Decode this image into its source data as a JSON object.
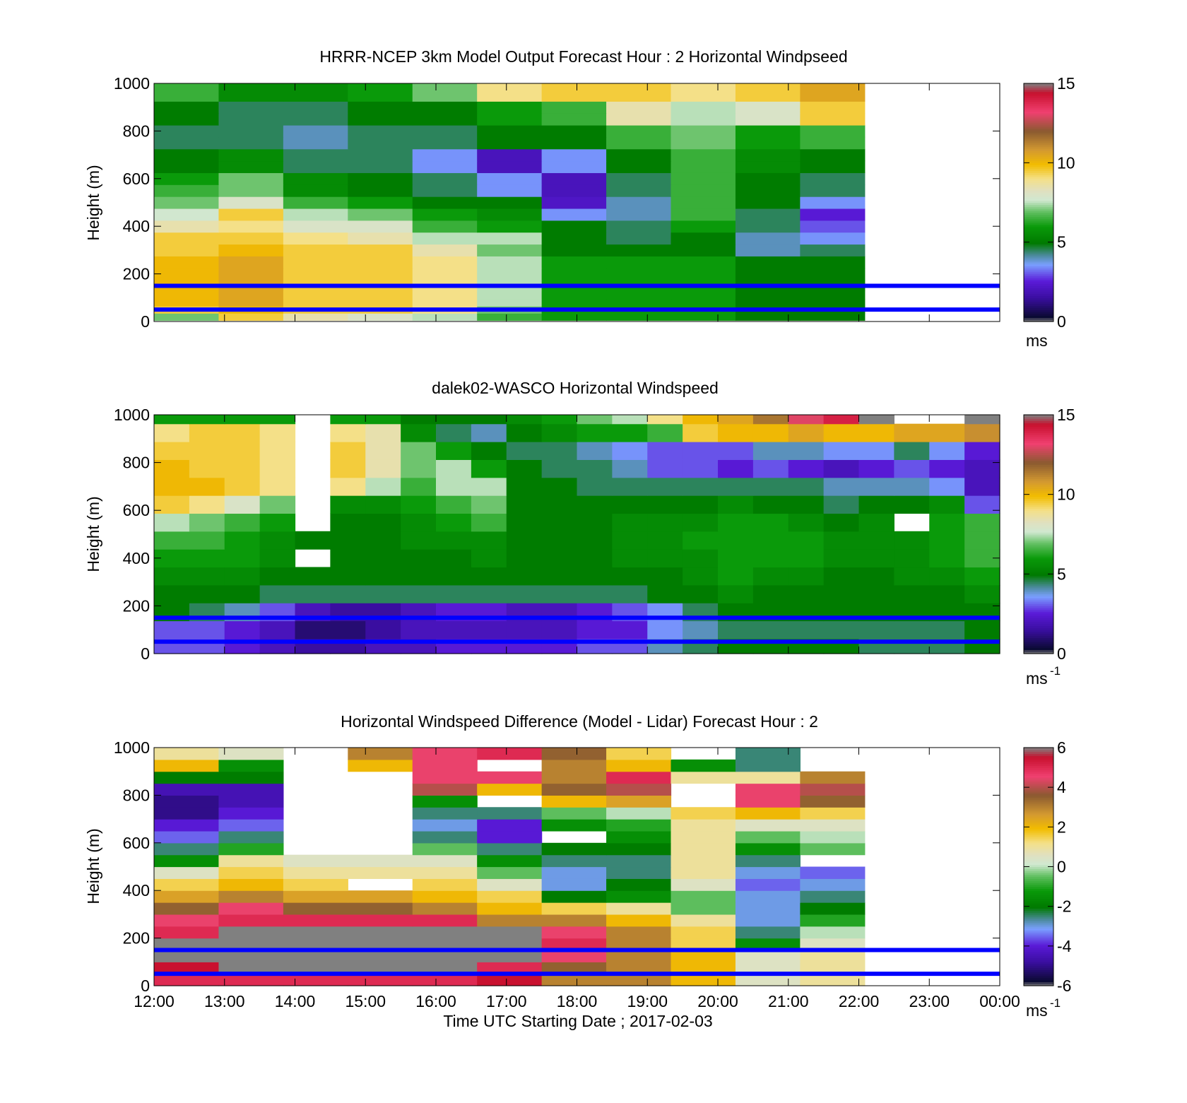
{
  "figure": {
    "xlabel": "Time UTC  Starting Date ; 2017-02-03",
    "xtick_labels": [
      "12:00",
      "13:00",
      "14:00",
      "15:00",
      "16:00",
      "17:00",
      "18:00",
      "19:00",
      "20:00",
      "21:00",
      "22:00",
      "23:00",
      "00:00"
    ],
    "reference_lines": {
      "heights_m": [
        50,
        150
      ],
      "color": "#0000ff"
    },
    "missing_color": "#ffffff"
  },
  "chart_data": [
    {
      "type": "heatmap",
      "title": "HRRR-NCEP 3km Model Output   Forecast Hour : 2 Horizontal Windpseed",
      "ylabel": "Height (m)",
      "ylim": [
        0,
        1000
      ],
      "yticks": [
        0,
        200,
        400,
        600,
        800,
        1000
      ],
      "x_hours": [
        "12:00",
        "13:00",
        "14:00",
        "15:00",
        "16:00",
        "17:00",
        "18:00",
        "19:00",
        "20:00",
        "21:00",
        "22:00",
        "23:00"
      ],
      "y_levels_m": [
        20,
        50,
        80,
        110,
        150,
        200,
        250,
        300,
        350,
        400,
        450,
        500,
        550,
        600,
        650,
        700,
        750,
        800,
        850,
        900,
        950,
        1000
      ],
      "units": "m s^-1",
      "colorbar": {
        "min": 0,
        "max": 15,
        "ticks": [
          0,
          5,
          10,
          15
        ],
        "label": "ms"
      },
      "values": [
        [
          7.0,
          9.5,
          8.5,
          8.0,
          7.5,
          6.5,
          6.0,
          6.0,
          6.0,
          5.0,
          5.0,
          null
        ],
        [
          9.5,
          10.0,
          9.5,
          9.5,
          9.0,
          7.0,
          6.0,
          6.0,
          6.0,
          5.0,
          5.0,
          null
        ],
        [
          10.0,
          10.5,
          9.5,
          9.5,
          9.0,
          7.5,
          6.0,
          6.0,
          6.0,
          5.0,
          5.0,
          null
        ],
        [
          10.0,
          10.5,
          9.5,
          9.5,
          9.0,
          7.5,
          6.0,
          6.0,
          6.0,
          5.0,
          5.0,
          null
        ],
        [
          10.0,
          10.5,
          9.5,
          9.5,
          9.0,
          7.5,
          6.0,
          6.0,
          6.0,
          5.0,
          5.0,
          null
        ],
        [
          10.0,
          10.5,
          9.5,
          9.5,
          9.0,
          7.5,
          6.0,
          6.0,
          6.0,
          5.0,
          5.0,
          null
        ],
        [
          10.0,
          10.5,
          9.5,
          9.5,
          9.0,
          7.5,
          6.0,
          6.0,
          6.0,
          5.0,
          5.0,
          null
        ],
        [
          9.5,
          10.0,
          9.5,
          9.5,
          8.5,
          7.0,
          5.0,
          5.0,
          5.0,
          4.0,
          4.5,
          null
        ],
        [
          9.5,
          9.5,
          9.0,
          8.5,
          7.5,
          7.5,
          5.0,
          4.5,
          5.0,
          4.0,
          3.5,
          null
        ],
        [
          8.5,
          9.0,
          8.0,
          8.0,
          6.5,
          6.0,
          5.0,
          4.5,
          6.0,
          4.5,
          3.0,
          null
        ],
        [
          7.7,
          9.5,
          7.5,
          7.0,
          6.0,
          5.5,
          3.5,
          4.0,
          6.5,
          4.5,
          2.5,
          null
        ],
        [
          7.0,
          8.0,
          6.5,
          6.0,
          5.0,
          5.0,
          2.2,
          4.0,
          6.5,
          5.0,
          3.5,
          null
        ],
        [
          6.5,
          7.0,
          5.5,
          5.0,
          4.5,
          3.5,
          2.0,
          4.5,
          6.5,
          5.0,
          4.5,
          null
        ],
        [
          6.0,
          7.0,
          5.5,
          5.0,
          4.5,
          3.5,
          2.0,
          4.5,
          6.5,
          5.0,
          4.5,
          null
        ],
        [
          5.0,
          5.5,
          4.5,
          4.5,
          3.5,
          2.0,
          3.5,
          5.0,
          6.5,
          5.5,
          5.0,
          null
        ],
        [
          5.0,
          5.5,
          4.5,
          4.5,
          3.5,
          2.0,
          3.5,
          5.0,
          6.5,
          5.5,
          5.0,
          null
        ],
        [
          4.5,
          4.5,
          4.0,
          4.5,
          4.5,
          5.0,
          5.0,
          6.5,
          7.0,
          6.0,
          6.5,
          null
        ],
        [
          4.5,
          4.5,
          4.0,
          4.5,
          4.5,
          5.0,
          5.0,
          6.5,
          7.0,
          6.0,
          6.5,
          null
        ],
        [
          5.0,
          4.5,
          4.5,
          5.0,
          5.0,
          6.0,
          6.5,
          8.5,
          7.5,
          8.0,
          9.5,
          null
        ],
        [
          5.0,
          4.5,
          4.5,
          5.0,
          5.0,
          6.0,
          6.5,
          8.5,
          7.5,
          8.0,
          9.5,
          null
        ],
        [
          6.5,
          5.5,
          5.5,
          6.0,
          7.0,
          9.0,
          9.5,
          9.5,
          9.0,
          9.5,
          10.5,
          null
        ],
        [
          6.5,
          5.5,
          5.5,
          6.0,
          7.0,
          9.0,
          9.5,
          9.5,
          9.0,
          9.5,
          10.5,
          null
        ]
      ]
    },
    {
      "type": "heatmap",
      "title": "dalek02-WASCO  Horizontal Windspeed",
      "ylabel": "Height (m)",
      "ylim": [
        0,
        1000
      ],
      "yticks": [
        0,
        200,
        400,
        600,
        800,
        1000
      ],
      "x_hours": [
        "12:00",
        "12:30",
        "13:00",
        "13:30",
        "14:00",
        "14:30",
        "15:00",
        "15:30",
        "16:00",
        "16:30",
        "17:00",
        "17:30",
        "18:00",
        "18:30",
        "19:00",
        "19:30",
        "20:00",
        "20:30",
        "21:00",
        "21:30",
        "22:00",
        "22:30",
        "23:00",
        "23:30"
      ],
      "y_levels_m": [
        25,
        100,
        175,
        250,
        325,
        400,
        475,
        550,
        625,
        700,
        775,
        850,
        925,
        1000
      ],
      "units": "m s^-1",
      "colorbar": {
        "min": 0,
        "max": 15,
        "ticks": [
          0,
          5,
          10,
          15
        ],
        "label": "ms",
        "label_exponent": "-1"
      },
      "values": [
        [
          3.0,
          3.0,
          2.5,
          2.0,
          1.5,
          1.5,
          2.0,
          2.0,
          2.5,
          2.5,
          2.5,
          2.5,
          3.0,
          3.0,
          4.0,
          4.5,
          5.0,
          5.0,
          5.0,
          5.0,
          4.5,
          4.5,
          4.5,
          5.0
        ],
        [
          3.0,
          3.0,
          2.5,
          2.0,
          1.0,
          1.0,
          1.5,
          2.0,
          2.0,
          2.0,
          2.0,
          2.0,
          2.5,
          2.5,
          3.5,
          4.0,
          4.5,
          4.5,
          4.5,
          4.5,
          4.5,
          4.5,
          4.5,
          5.0
        ],
        [
          5.0,
          4.5,
          4.0,
          3.0,
          2.0,
          1.5,
          1.5,
          2.0,
          2.5,
          2.5,
          2.0,
          2.0,
          2.5,
          3.0,
          3.5,
          4.5,
          5.0,
          5.0,
          5.0,
          5.0,
          5.0,
          5.0,
          5.0,
          5.0
        ],
        [
          5.0,
          5.0,
          5.0,
          4.5,
          4.5,
          4.5,
          4.5,
          4.5,
          4.5,
          4.5,
          4.5,
          4.5,
          4.5,
          4.5,
          5.0,
          5.0,
          5.5,
          5.0,
          5.0,
          5.0,
          5.0,
          5.0,
          5.0,
          5.5
        ],
        [
          5.5,
          5.5,
          5.5,
          5.0,
          5.0,
          5.0,
          5.0,
          5.0,
          5.0,
          5.0,
          5.0,
          5.0,
          5.0,
          5.0,
          5.0,
          5.5,
          6.0,
          5.5,
          5.5,
          5.0,
          5.0,
          5.5,
          5.5,
          6.0
        ],
        [
          6.0,
          6.0,
          6.0,
          5.5,
          null,
          5.0,
          5.0,
          5.0,
          5.0,
          5.5,
          5.0,
          5.0,
          5.0,
          5.5,
          5.5,
          5.5,
          6.0,
          6.0,
          6.0,
          5.5,
          5.5,
          5.5,
          6.0,
          6.5
        ],
        [
          6.5,
          6.5,
          6.0,
          5.5,
          5.0,
          5.0,
          5.0,
          5.5,
          5.5,
          5.5,
          5.0,
          5.0,
          5.0,
          5.5,
          5.5,
          6.0,
          6.0,
          6.0,
          6.0,
          5.5,
          5.5,
          5.5,
          6.0,
          6.5
        ],
        [
          7.5,
          7.0,
          6.5,
          6.0,
          null,
          5.0,
          5.0,
          5.5,
          6.0,
          6.5,
          5.0,
          5.0,
          5.0,
          5.5,
          5.5,
          5.5,
          6.0,
          6.0,
          5.5,
          5.0,
          5.5,
          null,
          6.0,
          6.5
        ],
        [
          9.5,
          9.0,
          8.0,
          7.0,
          null,
          5.5,
          5.5,
          6.0,
          6.5,
          7.0,
          5.0,
          5.0,
          5.0,
          5.0,
          5.0,
          5.0,
          5.5,
          5.0,
          5.0,
          4.5,
          5.0,
          5.0,
          5.5,
          3.0
        ],
        [
          10.0,
          10.0,
          9.5,
          9.0,
          null,
          9.0,
          7.5,
          6.5,
          7.5,
          7.5,
          5.0,
          5.0,
          4.5,
          4.5,
          4.5,
          4.5,
          4.5,
          4.5,
          4.5,
          4.0,
          4.0,
          4.0,
          3.5,
          2.0
        ],
        [
          10.0,
          9.5,
          9.5,
          9.0,
          null,
          9.5,
          8.5,
          7.0,
          7.5,
          6.0,
          5.0,
          4.5,
          4.5,
          4.0,
          3.0,
          3.0,
          2.5,
          3.0,
          2.5,
          2.0,
          2.5,
          3.0,
          2.5,
          2.0
        ],
        [
          9.5,
          9.5,
          9.5,
          9.0,
          null,
          9.5,
          8.5,
          7.0,
          6.0,
          5.0,
          4.5,
          4.5,
          4.0,
          3.5,
          3.0,
          3.0,
          3.0,
          4.0,
          4.0,
          3.5,
          3.5,
          4.5,
          3.5,
          2.5
        ],
        [
          9.0,
          9.5,
          9.5,
          9.0,
          null,
          9.0,
          8.5,
          5.5,
          4.5,
          4.0,
          5.0,
          5.5,
          6.0,
          6.0,
          6.5,
          9.5,
          10.0,
          10.0,
          10.5,
          10.0,
          10.0,
          10.5,
          10.5,
          11.0
        ],
        [
          6.0,
          6.0,
          6.0,
          6.0,
          null,
          6.0,
          6.0,
          5.0,
          5.0,
          5.0,
          5.5,
          6.0,
          7.0,
          7.5,
          9.0,
          10.0,
          10.5,
          11.5,
          13.0,
          14.0,
          15.0,
          null,
          null,
          15.0
        ]
      ]
    },
    {
      "type": "heatmap",
      "title": "Horizontal Windspeed Difference (Model - Lidar) Forecast Hour : 2",
      "ylabel": "Height (m)",
      "ylim": [
        0,
        1000
      ],
      "yticks": [
        0,
        200,
        400,
        600,
        800,
        1000
      ],
      "x_hours": [
        "12:00",
        "13:00",
        "14:00",
        "15:00",
        "16:00",
        "17:00",
        "18:00",
        "19:00",
        "20:00",
        "21:00",
        "22:00",
        "23:00"
      ],
      "y_levels_m": [
        25,
        75,
        125,
        175,
        225,
        275,
        325,
        375,
        425,
        475,
        525,
        575,
        625,
        675,
        725,
        775,
        825,
        875,
        925,
        975
      ],
      "units": "m s^-1",
      "colorbar": {
        "min": -6,
        "max": 6,
        "ticks": [
          -6,
          -4,
          -2,
          0,
          2,
          4,
          6
        ],
        "label": "ms",
        "label_exponent": "-1"
      },
      "values": [
        [
          5.0,
          5.0,
          5.0,
          5.0,
          5.0,
          5.5,
          3.0,
          3.0,
          2.0,
          0.5,
          1.0,
          null
        ],
        [
          5.5,
          6.0,
          6.0,
          6.0,
          6.0,
          5.0,
          3.5,
          3.0,
          2.0,
          0.5,
          1.0,
          null
        ],
        [
          6.0,
          6.0,
          6.0,
          6.0,
          6.0,
          6.0,
          4.5,
          3.0,
          2.0,
          0.5,
          1.0,
          null
        ],
        [
          6.0,
          6.0,
          6.0,
          6.0,
          6.0,
          6.0,
          5.0,
          3.0,
          1.5,
          -1.5,
          0.5,
          null
        ],
        [
          5.0,
          6.0,
          6.0,
          6.0,
          6.0,
          6.0,
          4.5,
          3.0,
          1.5,
          -2.5,
          0.0,
          null
        ],
        [
          4.5,
          5.0,
          5.0,
          5.0,
          5.0,
          3.0,
          3.0,
          2.0,
          1.0,
          -3.0,
          -1.0,
          null
        ],
        [
          3.5,
          4.5,
          3.5,
          3.5,
          3.0,
          2.0,
          1.5,
          1.0,
          -0.5,
          -3.0,
          -2.0,
          null
        ],
        [
          2.5,
          3.0,
          2.5,
          2.5,
          2.0,
          1.5,
          -2.0,
          -1.5,
          -0.5,
          -3.0,
          -2.5,
          null
        ],
        [
          1.5,
          2.0,
          1.5,
          null,
          1.5,
          0.5,
          -3.0,
          -2.0,
          0.5,
          -3.5,
          -3.0,
          null
        ],
        [
          0.5,
          1.5,
          1.0,
          1.0,
          1.0,
          -0.5,
          -3.0,
          -2.5,
          1.0,
          -3.0,
          -3.5,
          null
        ],
        [
          -1.5,
          1.0,
          0.5,
          0.5,
          0.5,
          -1.5,
          -2.5,
          -2.5,
          1.0,
          -2.5,
          null,
          null
        ],
        [
          -2.5,
          -1.0,
          null,
          null,
          -0.5,
          -2.5,
          -2.0,
          -2.0,
          1.0,
          -1.5,
          -0.5,
          null
        ],
        [
          -3.5,
          -2.5,
          null,
          null,
          -2.5,
          -4.0,
          null,
          -1.5,
          1.0,
          -0.5,
          0.0,
          null
        ],
        [
          -4.0,
          -3.5,
          null,
          null,
          -3.0,
          -4.0,
          -1.5,
          -1.0,
          1.0,
          0.5,
          0.5,
          null
        ],
        [
          -5.0,
          -4.0,
          null,
          null,
          -2.5,
          -2.5,
          -0.5,
          0.0,
          1.5,
          2.0,
          1.5,
          null
        ],
        [
          -5.0,
          -4.5,
          null,
          null,
          -1.5,
          null,
          2.0,
          2.5,
          null,
          4.5,
          3.5,
          null
        ],
        [
          -4.5,
          -4.5,
          null,
          null,
          4.0,
          2.0,
          3.5,
          4.0,
          null,
          4.5,
          4.0,
          null
        ],
        [
          -2.0,
          -2.0,
          null,
          null,
          4.5,
          4.5,
          3.0,
          5.0,
          1.0,
          1.0,
          3.0,
          null
        ],
        [
          2.0,
          -1.5,
          null,
          2.0,
          4.5,
          null,
          3.0,
          2.0,
          -1.5,
          -2.5,
          null,
          null
        ],
        [
          1.0,
          0.5,
          null,
          3.0,
          4.5,
          5.0,
          3.5,
          1.5,
          null,
          -2.5,
          null,
          null
        ]
      ]
    }
  ]
}
